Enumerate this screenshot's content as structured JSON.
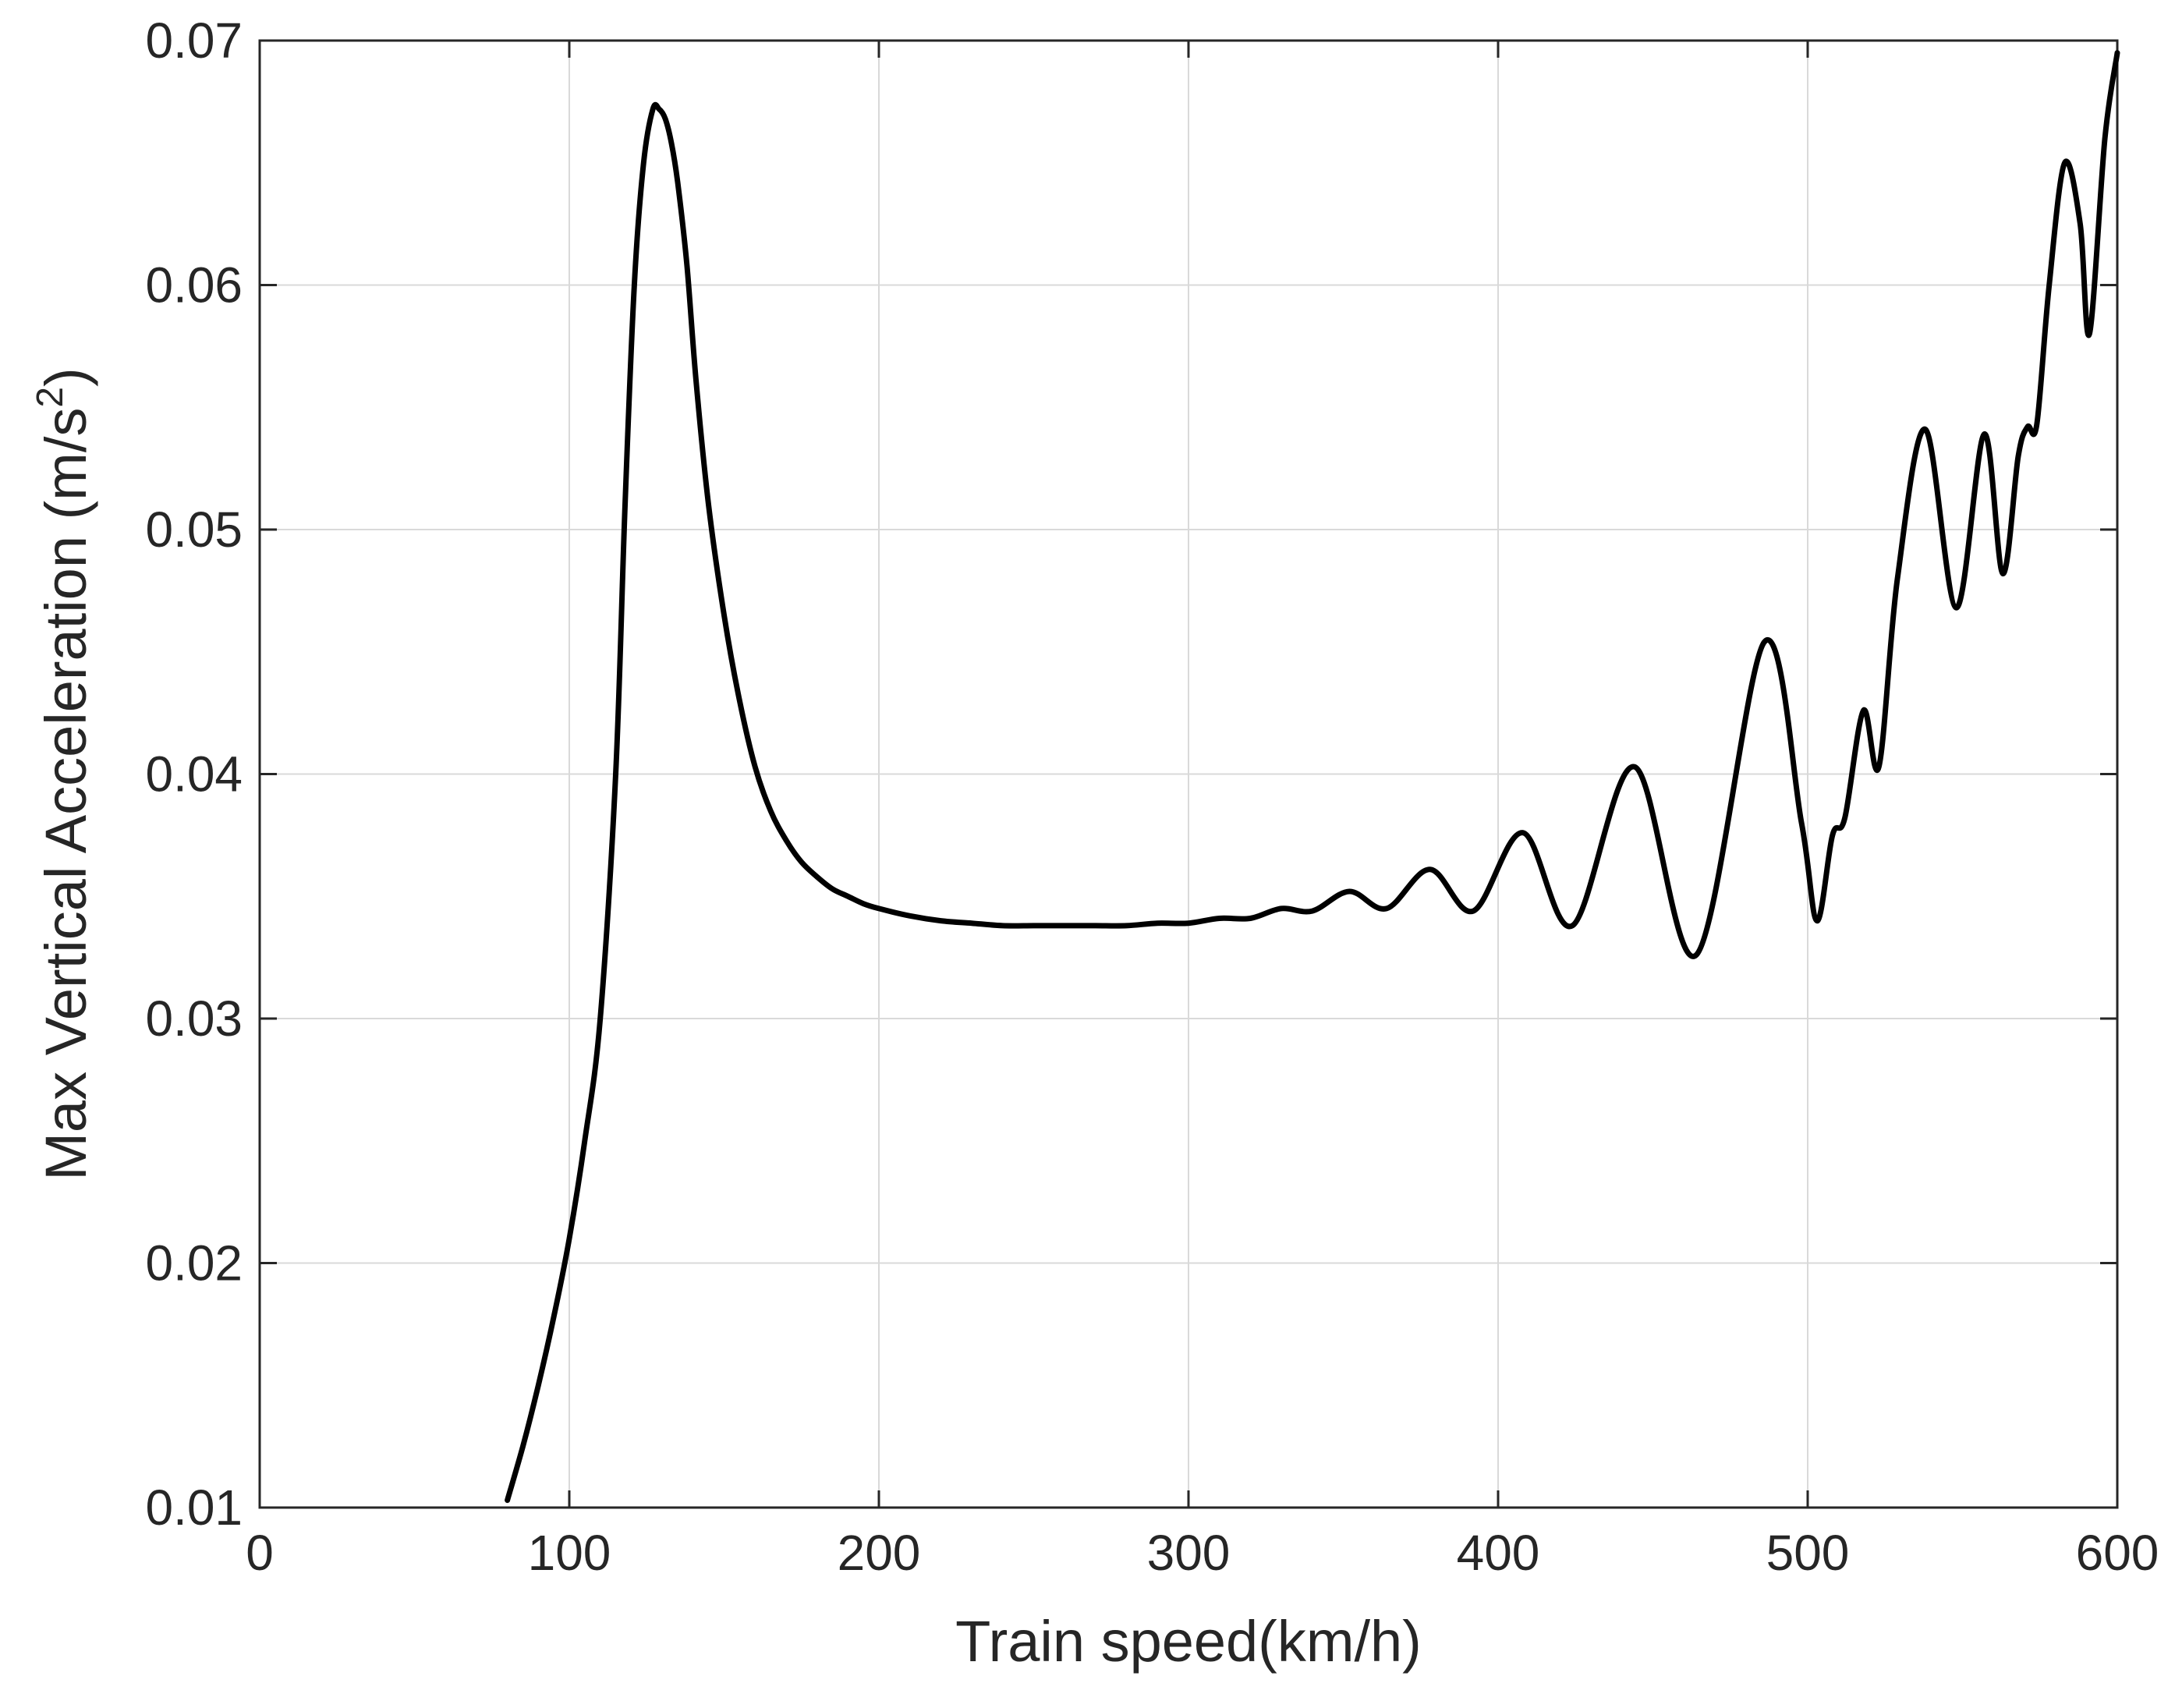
{
  "chart_data": {
    "type": "line",
    "xlabel": "Train speed(km/h)",
    "ylabel_main": "Max Vertical Acceleration (m/s",
    "ylabel_sup": "2",
    "ylabel_tail": ")",
    "xlim": [
      0,
      600
    ],
    "ylim": [
      0.01,
      0.07
    ],
    "xticks": [
      0,
      100,
      200,
      300,
      400,
      500,
      600
    ],
    "xtick_labels": [
      "0",
      "100",
      "200",
      "300",
      "400",
      "500",
      "600"
    ],
    "yticks": [
      0.01,
      0.02,
      0.03,
      0.04,
      0.05,
      0.06,
      0.07
    ],
    "ytick_labels": [
      "0.01",
      "0.02",
      "0.03",
      "0.04",
      "0.05",
      "0.06",
      "0.07"
    ],
    "grid": true,
    "series": [
      {
        "color": "#000000",
        "x": [
          80,
          85,
          90,
          95,
          100,
          105,
          110,
          115,
          118,
          121,
          124,
          127,
          129,
          131,
          133,
          135,
          138,
          141,
          145,
          150,
          155,
          160,
          165,
          170,
          175,
          180,
          185,
          190,
          195,
          200,
          210,
          220,
          230,
          240,
          250,
          260,
          270,
          280,
          290,
          300,
          310,
          320,
          330,
          340,
          352,
          364,
          378,
          392,
          408,
          424,
          444,
          464,
          486,
          498,
          503,
          508,
          512,
          518,
          523,
          529,
          538,
          548,
          557,
          563,
          568,
          571,
          574,
          578,
          583,
          588,
          591,
          596,
          600
        ],
        "y": [
          0.0103,
          0.0125,
          0.015,
          0.0178,
          0.021,
          0.025,
          0.03,
          0.04,
          0.051,
          0.06,
          0.065,
          0.0672,
          0.0672,
          0.0668,
          0.0658,
          0.0642,
          0.0608,
          0.056,
          0.051,
          0.0465,
          0.043,
          0.0403,
          0.0385,
          0.0373,
          0.0364,
          0.0358,
          0.0353,
          0.035,
          0.0347,
          0.0345,
          0.0342,
          0.034,
          0.0339,
          0.0338,
          0.0338,
          0.0338,
          0.0338,
          0.0338,
          0.0339,
          0.0339,
          0.0341,
          0.0341,
          0.0345,
          0.0344,
          0.0352,
          0.0345,
          0.0361,
          0.0344,
          0.0376,
          0.0338,
          0.0403,
          0.0326,
          0.0454,
          0.038,
          0.034,
          0.0375,
          0.0382,
          0.0426,
          0.0403,
          0.048,
          0.0541,
          0.0468,
          0.0539,
          0.0482,
          0.053,
          0.0542,
          0.0543,
          0.06,
          0.065,
          0.0625,
          0.058,
          0.066,
          0.0695
        ]
      }
    ]
  }
}
